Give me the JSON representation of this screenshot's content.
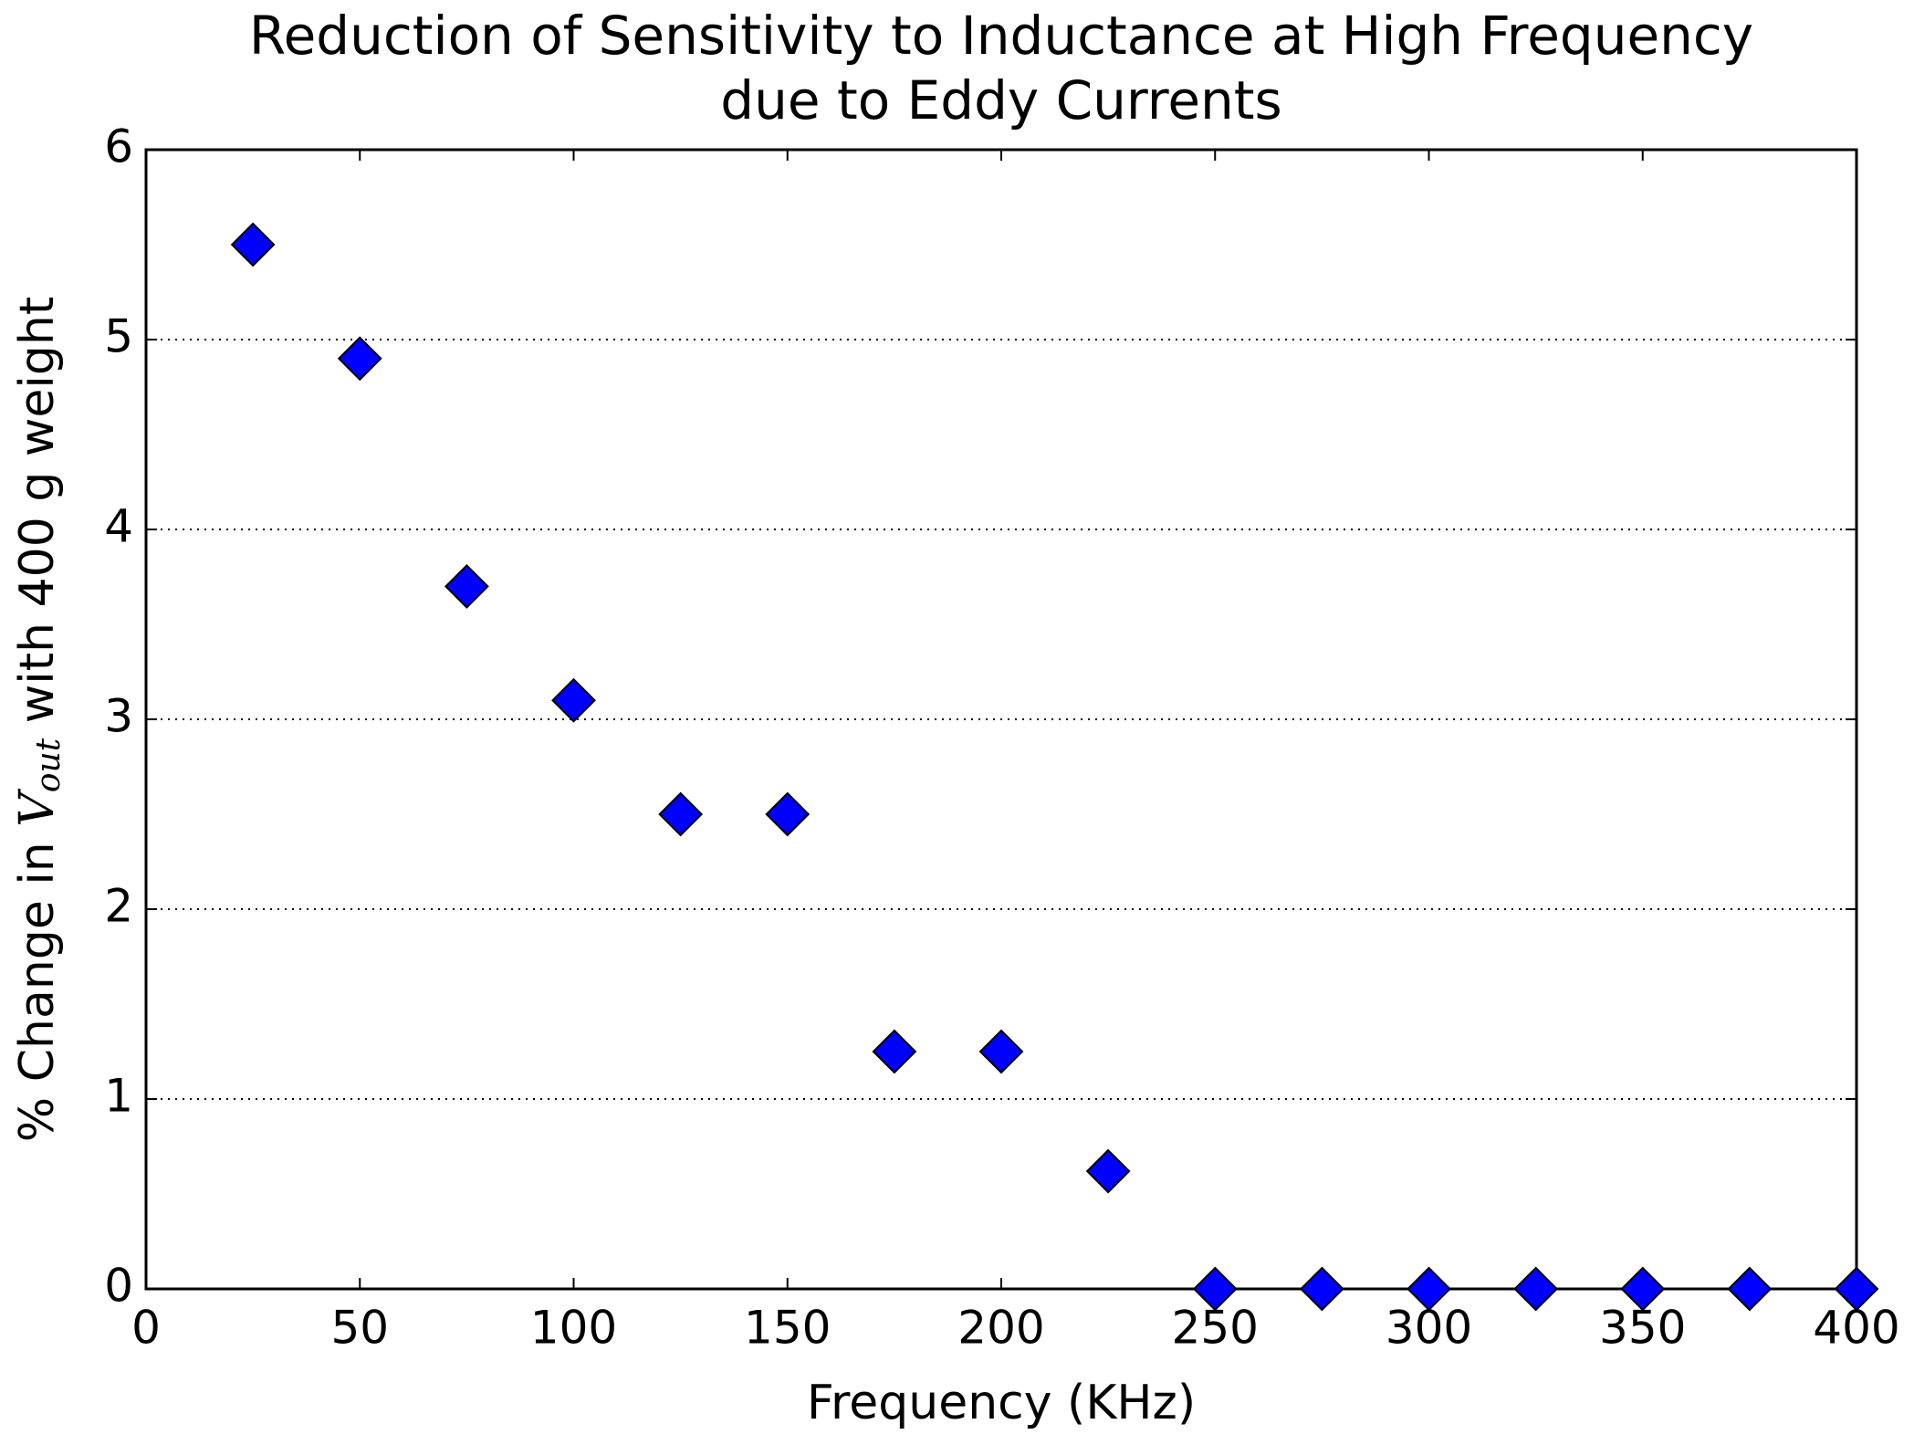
{
  "chart_data": {
    "type": "scatter",
    "title": [
      "Reduction of Sensitivity to Inductance at High Frequency",
      "due to Eddy Currents"
    ],
    "xlabel": "Frequency (KHz)",
    "ylabel": [
      "% Change in ",
      "V",
      "out",
      " with 400 g weight"
    ],
    "series": [
      {
        "color": "#0000ff",
        "marker": "diamond",
        "x": [
          25,
          50,
          75,
          100,
          125,
          150,
          175,
          200,
          225,
          250,
          275,
          300,
          325,
          350,
          375,
          400
        ],
        "values": [
          5.5,
          4.9,
          3.7,
          3.1,
          2.5,
          2.5,
          1.25,
          1.25,
          0.62,
          0,
          0,
          0,
          0,
          0,
          0,
          0
        ]
      }
    ],
    "xlim": [
      0,
      400
    ],
    "xticks": [
      0,
      50,
      100,
      150,
      200,
      250,
      300,
      350,
      400
    ],
    "ylim": [
      0,
      6
    ],
    "yticks": [
      0,
      1,
      2,
      3,
      4,
      5,
      6
    ],
    "grid": "y"
  }
}
